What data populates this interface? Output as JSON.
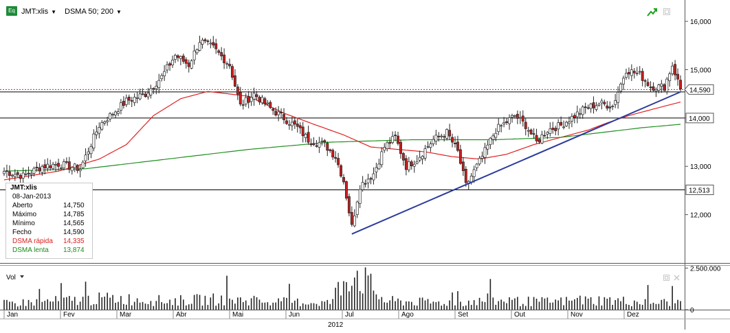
{
  "toolbar": {
    "app_icon": "Eq",
    "symbol": "JMT:xlis",
    "indicator": "DSMA 50; 200",
    "icons": [
      "trend-up-icon",
      "window-restore-icon"
    ]
  },
  "infobox": {
    "symbol": "JMT:xlis",
    "date": "08-Jan-2013",
    "rows": [
      {
        "label": "Aberto",
        "value": "14,750",
        "color": "#000000"
      },
      {
        "label": "Máximo",
        "value": "14,785",
        "color": "#000000"
      },
      {
        "label": "Mínimo",
        "value": "14,565",
        "color": "#000000"
      },
      {
        "label": "Fecho",
        "value": "14,590",
        "color": "#000000"
      },
      {
        "label": "DSMA rápida",
        "value": "14,335",
        "color": "#d81f1f"
      },
      {
        "label": "DSMA lenta",
        "value": "13,874",
        "color": "#1a8a1a"
      }
    ]
  },
  "volume_panel": {
    "label": "Vol",
    "icons": [
      "window-restore-icon",
      "close-icon"
    ]
  },
  "colors": {
    "up": "#1f8a1f",
    "down": "#c81e1e",
    "fast_ma": "#e02020",
    "slow_ma": "#1f8f1f",
    "trend": "#2b3b9b",
    "last_line": "#d42020"
  },
  "chart_data": {
    "type": "candlestick",
    "title": "",
    "year_label": "2012",
    "x_months": [
      "Jan",
      "Fev",
      "Mar",
      "Abr",
      "Mai",
      "Jun",
      "Jul",
      "Ago",
      "Set",
      "Out",
      "Nov",
      "Dez"
    ],
    "y_ticks": [
      "16,000",
      "15,000",
      "14,000",
      "13,000",
      "12,000"
    ],
    "y_tick_values": [
      16.0,
      15.0,
      14.0,
      13.0,
      12.0
    ],
    "ylim": [
      11.0,
      16.3
    ],
    "volume_ticks": [
      "2.500.000",
      "0"
    ],
    "volume_tick_values": [
      2500000,
      0
    ],
    "volume_ylim": [
      0,
      2600000
    ],
    "horizontal_levels": [
      {
        "value": 14.54,
        "label": ""
      },
      {
        "value": 14.0,
        "label": "14,000"
      },
      {
        "value": 12.513,
        "label": "12,513"
      }
    ],
    "last_price": {
      "value": 14.59,
      "label": "14,590"
    },
    "trend_line": {
      "from": [
        128,
        11.6
      ],
      "to": [
        249,
        14.54
      ]
    },
    "close_anchors": [
      [
        0,
        12.9
      ],
      [
        7,
        12.8
      ],
      [
        14,
        13.0
      ],
      [
        20,
        13.05
      ],
      [
        28,
        12.95
      ],
      [
        35,
        13.85
      ],
      [
        45,
        14.35
      ],
      [
        52,
        14.5
      ],
      [
        58,
        14.85
      ],
      [
        63,
        15.3
      ],
      [
        68,
        15.1
      ],
      [
        72,
        15.6
      ],
      [
        77,
        15.45
      ],
      [
        83,
        15.1
      ],
      [
        87,
        14.25
      ],
      [
        92,
        14.5
      ],
      [
        98,
        14.2
      ],
      [
        103,
        14.0
      ],
      [
        108,
        13.8
      ],
      [
        112,
        13.55
      ],
      [
        118,
        13.45
      ],
      [
        122,
        13.2
      ],
      [
        125,
        12.7
      ],
      [
        128,
        11.75
      ],
      [
        131,
        12.6
      ],
      [
        136,
        12.85
      ],
      [
        140,
        13.4
      ],
      [
        144,
        13.6
      ],
      [
        148,
        13.0
      ],
      [
        152,
        13.15
      ],
      [
        158,
        13.55
      ],
      [
        163,
        13.7
      ],
      [
        167,
        13.3
      ],
      [
        170,
        12.6
      ],
      [
        176,
        13.2
      ],
      [
        181,
        13.75
      ],
      [
        188,
        14.05
      ],
      [
        192,
        13.85
      ],
      [
        196,
        13.5
      ],
      [
        200,
        13.75
      ],
      [
        205,
        13.85
      ],
      [
        210,
        14.05
      ],
      [
        214,
        14.2
      ],
      [
        219,
        14.3
      ],
      [
        224,
        14.25
      ],
      [
        229,
        15.0
      ],
      [
        234,
        14.9
      ],
      [
        238,
        14.65
      ],
      [
        243,
        14.65
      ],
      [
        246,
        15.1
      ],
      [
        249,
        14.6
      ]
    ],
    "fast_ma_anchors": [
      [
        0,
        12.72
      ],
      [
        20,
        12.9
      ],
      [
        35,
        13.15
      ],
      [
        45,
        13.45
      ],
      [
        55,
        14.05
      ],
      [
        65,
        14.4
      ],
      [
        75,
        14.55
      ],
      [
        90,
        14.45
      ],
      [
        103,
        14.1
      ],
      [
        115,
        13.85
      ],
      [
        125,
        13.65
      ],
      [
        135,
        13.4
      ],
      [
        145,
        13.35
      ],
      [
        155,
        13.3
      ],
      [
        165,
        13.2
      ],
      [
        175,
        13.15
      ],
      [
        185,
        13.25
      ],
      [
        195,
        13.45
      ],
      [
        205,
        13.6
      ],
      [
        215,
        13.75
      ],
      [
        222,
        13.9
      ],
      [
        230,
        14.05
      ],
      [
        240,
        14.2
      ],
      [
        249,
        14.33
      ]
    ],
    "slow_ma_anchors": [
      [
        0,
        12.9
      ],
      [
        30,
        12.95
      ],
      [
        60,
        13.15
      ],
      [
        90,
        13.35
      ],
      [
        120,
        13.5
      ],
      [
        150,
        13.55
      ],
      [
        180,
        13.55
      ],
      [
        205,
        13.6
      ],
      [
        220,
        13.7
      ],
      [
        235,
        13.8
      ],
      [
        249,
        13.87
      ]
    ],
    "volume_anchors": [
      [
        0,
        350000
      ],
      [
        20,
        500000
      ],
      [
        40,
        650000
      ],
      [
        60,
        500000
      ],
      [
        80,
        600000
      ],
      [
        100,
        450000
      ],
      [
        120,
        400000
      ],
      [
        128,
        2400000
      ],
      [
        140,
        500000
      ],
      [
        160,
        400000
      ],
      [
        180,
        500000
      ],
      [
        200,
        450000
      ],
      [
        220,
        550000
      ],
      [
        240,
        400000
      ],
      [
        249,
        450000
      ]
    ]
  }
}
